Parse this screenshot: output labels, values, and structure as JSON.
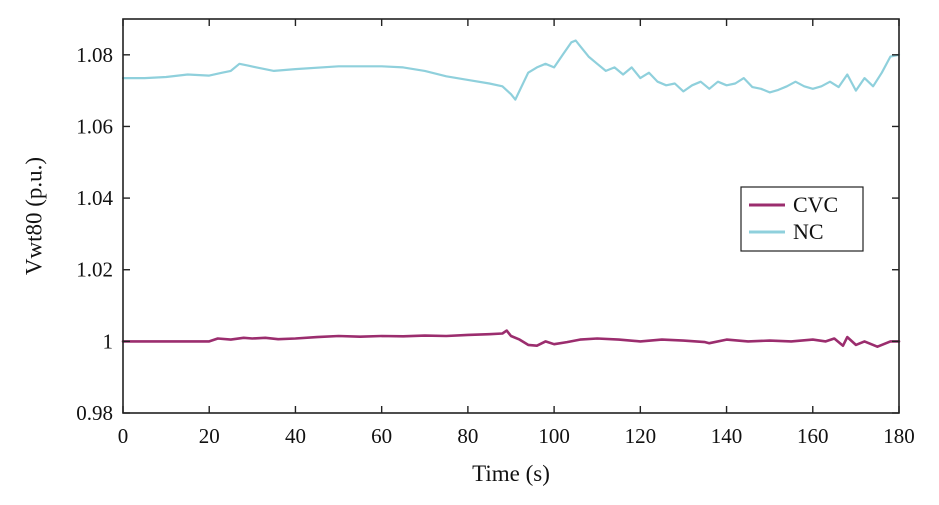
{
  "chart_data": {
    "type": "line",
    "xlabel": "Time (s)",
    "ylabel": "Vwt80 (p.u.)",
    "xlim": [
      0,
      180
    ],
    "ylim": [
      0.98,
      1.09
    ],
    "x_ticks": [
      0,
      20,
      40,
      60,
      80,
      100,
      120,
      140,
      160,
      180
    ],
    "x_tick_labels": [
      "0",
      "20",
      "40",
      "60",
      "80",
      "100",
      "120",
      "140",
      "160",
      "180"
    ],
    "y_ticks": [
      0.98,
      1.0,
      1.02,
      1.04,
      1.06,
      1.08
    ],
    "y_tick_labels": [
      "0.98",
      "1",
      "1.02",
      "1.04",
      "1.06",
      "1.08"
    ],
    "grid": false,
    "legend_position": "right-middle",
    "series": [
      {
        "name": "CVC",
        "color": "#9b2d6e",
        "x": [
          0,
          5,
          10,
          15,
          20,
          22,
          25,
          28,
          30,
          33,
          36,
          40,
          45,
          50,
          55,
          60,
          65,
          70,
          75,
          80,
          85,
          88,
          89,
          90,
          92,
          94,
          96,
          98,
          100,
          103,
          106,
          110,
          115,
          120,
          125,
          130,
          135,
          136,
          140,
          145,
          150,
          155,
          160,
          163,
          165,
          167,
          168,
          170,
          172,
          175,
          178,
          180
        ],
        "y": [
          1.0,
          1.0,
          1.0,
          1.0,
          1.0,
          1.0008,
          1.0005,
          1.001,
          1.0008,
          1.001,
          1.0006,
          1.0008,
          1.0012,
          1.0015,
          1.0013,
          1.0015,
          1.0014,
          1.0016,
          1.0015,
          1.0018,
          1.002,
          1.0022,
          1.003,
          1.0015,
          1.0005,
          0.999,
          0.9988,
          1.0,
          0.9992,
          0.9998,
          1.0005,
          1.0008,
          1.0005,
          1.0,
          1.0005,
          1.0002,
          0.9998,
          0.9995,
          1.0005,
          1.0,
          1.0002,
          1.0,
          1.0005,
          1.0,
          1.0008,
          0.9988,
          1.0012,
          0.999,
          1.0,
          0.9985,
          1.0,
          1.0
        ]
      },
      {
        "name": "NC",
        "color": "#8fd0dc",
        "x": [
          0,
          5,
          10,
          15,
          20,
          23,
          25,
          27,
          29,
          31,
          35,
          40,
          50,
          60,
          65,
          70,
          75,
          80,
          85,
          88,
          90,
          91,
          92,
          94,
          96,
          98,
          100,
          102,
          104,
          105,
          106,
          108,
          110,
          112,
          114,
          116,
          118,
          120,
          122,
          124,
          126,
          128,
          130,
          132,
          134,
          136,
          138,
          140,
          142,
          144,
          146,
          148,
          150,
          152,
          154,
          156,
          158,
          160,
          162,
          164,
          166,
          168,
          170,
          172,
          174,
          176,
          178,
          180
        ],
        "y": [
          1.0735,
          1.0735,
          1.0738,
          1.0745,
          1.0742,
          1.075,
          1.0755,
          1.0775,
          1.077,
          1.0765,
          1.0755,
          1.076,
          1.0768,
          1.0768,
          1.0765,
          1.0755,
          1.074,
          1.073,
          1.072,
          1.0712,
          1.069,
          1.0675,
          1.07,
          1.075,
          1.0765,
          1.0775,
          1.0765,
          1.08,
          1.0835,
          1.084,
          1.0825,
          1.0795,
          1.0775,
          1.0755,
          1.0765,
          1.0745,
          1.0765,
          1.0735,
          1.075,
          1.0725,
          1.0715,
          1.072,
          1.0698,
          1.0715,
          1.0725,
          1.0705,
          1.0725,
          1.0715,
          1.072,
          1.0735,
          1.071,
          1.0705,
          1.0695,
          1.0702,
          1.0712,
          1.0725,
          1.0712,
          1.0705,
          1.0712,
          1.0725,
          1.071,
          1.0745,
          1.07,
          1.0735,
          1.0712,
          1.075,
          1.0795,
          1.08
        ]
      }
    ]
  }
}
